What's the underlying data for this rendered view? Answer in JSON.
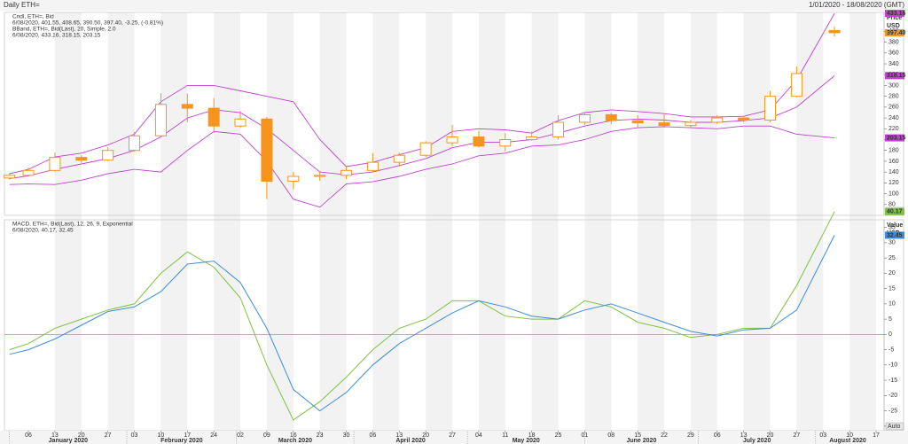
{
  "header": {
    "title": "Daily ETH=",
    "range": "1/01/2020 - 18/08/2020 (GMT)"
  },
  "chart_data": [
    {
      "type": "candlestick",
      "x": [
        "2020-01-01",
        "2020-01-06",
        "2020-01-13",
        "2020-01-20",
        "2020-01-27",
        "2020-02-03",
        "2020-02-10",
        "2020-02-17",
        "2020-02-24",
        "2020-03-02",
        "2020-03-09",
        "2020-03-16",
        "2020-03-23",
        "2020-03-30",
        "2020-04-06",
        "2020-04-13",
        "2020-04-20",
        "2020-04-27",
        "2020-05-04",
        "2020-05-11",
        "2020-05-18",
        "2020-05-25",
        "2020-06-01",
        "2020-06-08",
        "2020-06-15",
        "2020-06-22",
        "2020-06-29",
        "2020-07-06",
        "2020-07-13",
        "2020-07-20",
        "2020-07-27",
        "2020-08-06"
      ],
      "xlim": [
        "2020-01-01",
        "2020-08-18"
      ],
      "ylim": [
        60,
        435
      ],
      "yticks": [
        80,
        100,
        120,
        140,
        160,
        180,
        200,
        220,
        240,
        260,
        280,
        300,
        320,
        340,
        360,
        380,
        400
      ],
      "y_label": "Price",
      "y_unit": "USD",
      "scale_button": "Auto",
      "legend": [
        {
          "name": "Cndl, ETH=, Bid",
          "info": "6/08/2020, 401.55, 408.65, 390.50, 397.40,",
          "change": "-3.25, (-0.81%)",
          "color": "#f39c1e",
          "change_color": "#e03030"
        },
        {
          "name": "BBand, ETH=, Bid(Last), 20, Simple, 2.0",
          "info": "6/08/2020, 433.16, 318.15, 203.15",
          "color": "#c040d0"
        }
      ],
      "candles": {
        "color": "#f7941d",
        "open": [
          129,
          134,
          143,
          167,
          162,
          180,
          207,
          265,
          258,
          225,
          238,
          123,
          132,
          134,
          143,
          158,
          171,
          194,
          205,
          188,
          200,
          205,
          232,
          246,
          235,
          231,
          226,
          232,
          240,
          236,
          280,
          401.55
        ],
        "high": [
          137,
          148,
          176,
          171,
          186,
          214,
          286,
          285,
          277,
          253,
          242,
          140,
          142,
          150,
          175,
          176,
          197,
          227,
          216,
          212,
          215,
          245,
          250,
          250,
          245,
          248,
          236,
          245,
          242,
          290,
          335,
          408.65
        ],
        "low": [
          126,
          133,
          141,
          157,
          160,
          178,
          205,
          232,
          212,
          222,
          90,
          108,
          124,
          127,
          139,
          150,
          168,
          188,
          185,
          178,
          198,
          200,
          227,
          228,
          223,
          222,
          222,
          229,
          232,
          232,
          278,
          390.5
        ],
        "close": [
          134,
          143,
          167,
          162,
          180,
          207,
          265,
          258,
          225,
          238,
          123,
          132,
          134,
          143,
          158,
          171,
          194,
          205,
          188,
          200,
          205,
          232,
          246,
          235,
          231,
          226,
          232,
          240,
          236,
          280,
          322,
          397.4
        ],
        "last_label": "397.40"
      },
      "bands": {
        "color": "#c040d0",
        "upper": [
          137,
          145,
          168,
          175,
          190,
          210,
          270,
          300,
          300,
          290,
          280,
          270,
          200,
          150,
          158,
          172,
          185,
          215,
          220,
          218,
          212,
          235,
          250,
          255,
          252,
          248,
          242,
          242,
          243,
          255,
          310,
          433.16
        ],
        "middle": [
          128,
          133,
          145,
          155,
          165,
          180,
          205,
          240,
          255,
          250,
          220,
          180,
          140,
          135,
          140,
          152,
          165,
          185,
          195,
          195,
          200,
          212,
          225,
          235,
          238,
          236,
          232,
          232,
          235,
          240,
          260,
          318.15
        ],
        "lower": [
          117,
          118,
          117,
          125,
          137,
          145,
          140,
          180,
          215,
          210,
          160,
          90,
          75,
          118,
          122,
          132,
          145,
          155,
          170,
          175,
          188,
          190,
          200,
          215,
          222,
          224,
          222,
          220,
          225,
          225,
          210,
          203.15
        ]
      }
    },
    {
      "type": "line",
      "x": [
        "2020-01-01",
        "2020-01-06",
        "2020-01-13",
        "2020-01-20",
        "2020-01-27",
        "2020-02-03",
        "2020-02-10",
        "2020-02-17",
        "2020-02-24",
        "2020-03-02",
        "2020-03-09",
        "2020-03-16",
        "2020-03-23",
        "2020-03-30",
        "2020-04-06",
        "2020-04-13",
        "2020-04-20",
        "2020-04-27",
        "2020-05-04",
        "2020-05-11",
        "2020-05-18",
        "2020-05-25",
        "2020-06-01",
        "2020-06-08",
        "2020-06-15",
        "2020-06-22",
        "2020-06-29",
        "2020-07-06",
        "2020-07-13",
        "2020-07-20",
        "2020-07-27",
        "2020-08-06"
      ],
      "xlim": [
        "2020-01-01",
        "2020-08-18"
      ],
      "ylim": [
        -31.5,
        37.5
      ],
      "yticks": [
        -30,
        -25,
        -20,
        -15,
        -10,
        -5,
        0,
        5,
        10,
        15,
        20,
        25,
        30,
        35
      ],
      "y_label": "Value",
      "y_unit": "USD",
      "scale_button": "Auto",
      "legend": {
        "name": "MACD, ETH=, Bid(Last), 12, 26, 9, Exponential",
        "info": "6/08/2020, 40.17, 32.45",
        "color": "#6cbf3a"
      },
      "zero_line": 0,
      "zero_line_color": "#66cc33",
      "series": [
        {
          "color": "#7dc242",
          "values": [
            -5,
            -3,
            2,
            5,
            8,
            10,
            20,
            27,
            22,
            12,
            -10,
            -28,
            -22,
            -14,
            -5,
            2,
            5,
            11,
            11,
            6,
            5,
            5,
            11,
            9,
            4,
            2,
            -1,
            0,
            2,
            2,
            16,
            40.17
          ]
        },
        {
          "color": "#3c8ddc",
          "values": [
            -6.5,
            -5,
            -1.5,
            3,
            7.5,
            9,
            14,
            23,
            24,
            17,
            2,
            -18,
            -25,
            -19,
            -10,
            -3,
            2,
            7,
            11,
            9,
            6,
            5,
            8,
            10,
            7,
            4,
            1,
            -0.5,
            1.5,
            2,
            8,
            32.45
          ]
        }
      ],
      "xticks": [
        {
          "value": "2020-01-06",
          "label": "06"
        },
        {
          "value": "2020-01-13",
          "label": "13"
        },
        {
          "value": "2020-01-20",
          "label": "20"
        },
        {
          "value": "2020-01-27",
          "label": "27"
        },
        {
          "value": "2020-02-03",
          "label": "03"
        },
        {
          "value": "2020-02-10",
          "label": "10"
        },
        {
          "value": "2020-02-17",
          "label": "17"
        },
        {
          "value": "2020-02-24",
          "label": "24"
        },
        {
          "value": "2020-03-02",
          "label": "02"
        },
        {
          "value": "2020-03-09",
          "label": "09"
        },
        {
          "value": "2020-03-16",
          "label": "16"
        },
        {
          "value": "2020-03-23",
          "label": "23"
        },
        {
          "value": "2020-03-30",
          "label": "30"
        },
        {
          "value": "2020-04-06",
          "label": "06"
        },
        {
          "value": "2020-04-13",
          "label": "13"
        },
        {
          "value": "2020-04-20",
          "label": "20"
        },
        {
          "value": "2020-04-27",
          "label": "27"
        },
        {
          "value": "2020-05-04",
          "label": "04"
        },
        {
          "value": "2020-05-11",
          "label": "11"
        },
        {
          "value": "2020-05-18",
          "label": "18"
        },
        {
          "value": "2020-05-25",
          "label": "25"
        },
        {
          "value": "2020-06-01",
          "label": "01"
        },
        {
          "value": "2020-06-08",
          "label": "08"
        },
        {
          "value": "2020-06-15",
          "label": "15"
        },
        {
          "value": "2020-06-22",
          "label": "22"
        },
        {
          "value": "2020-06-29",
          "label": "29"
        },
        {
          "value": "2020-07-06",
          "label": "06"
        },
        {
          "value": "2020-07-13",
          "label": "13"
        },
        {
          "value": "2020-07-20",
          "label": "20"
        },
        {
          "value": "2020-07-27",
          "label": "27"
        },
        {
          "value": "2020-08-03",
          "label": "03"
        },
        {
          "value": "2020-08-10",
          "label": "10"
        },
        {
          "value": "2020-08-17",
          "label": "17"
        }
      ],
      "months": [
        {
          "value": "2020-01-01",
          "label": "January 2020"
        },
        {
          "value": "2020-02-01",
          "label": "February 2020"
        },
        {
          "value": "2020-03-01",
          "label": "March 2020"
        },
        {
          "value": "2020-04-01",
          "label": "April 2020"
        },
        {
          "value": "2020-05-01",
          "label": "May 2020"
        },
        {
          "value": "2020-06-01",
          "label": "June 2020"
        },
        {
          "value": "2020-07-01",
          "label": "July 2020"
        },
        {
          "value": "2020-08-01",
          "label": "August 2020"
        }
      ]
    }
  ]
}
